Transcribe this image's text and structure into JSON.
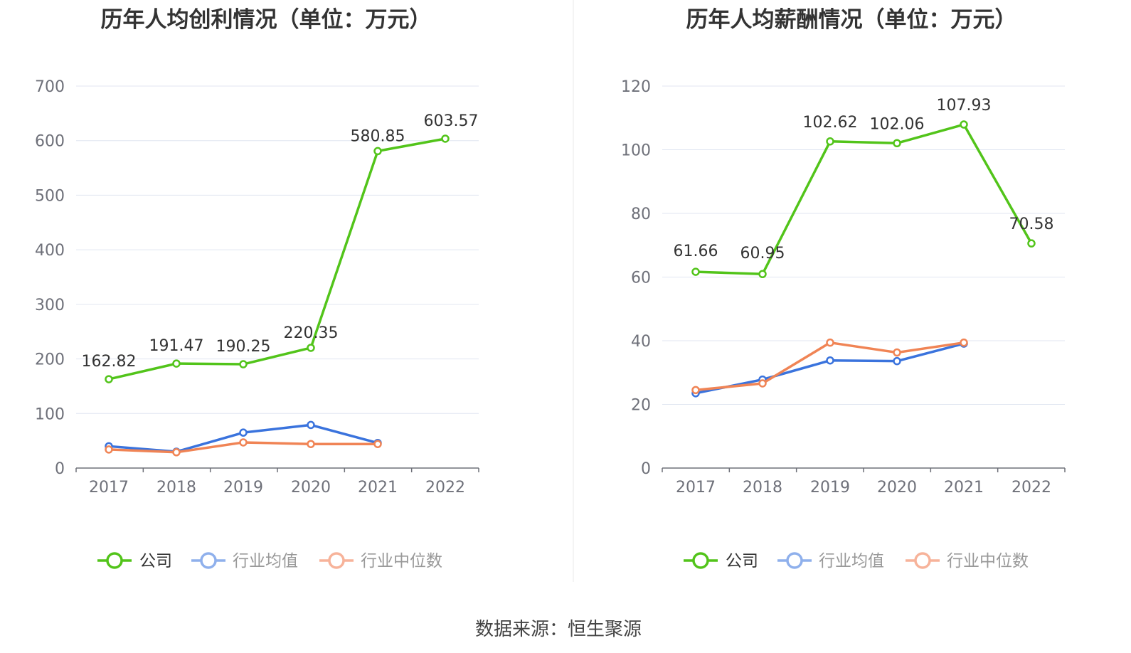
{
  "chart_data": [
    {
      "type": "line",
      "title": "历年人均创利情况（单位：万元）",
      "categories": [
        "2017",
        "2018",
        "2019",
        "2020",
        "2021",
        "2022"
      ],
      "ylim": [
        0,
        700
      ],
      "yticks": [
        0,
        100,
        200,
        300,
        400,
        500,
        600,
        700
      ],
      "grid": true,
      "legend_position": "bottom",
      "series": [
        {
          "name": "公司",
          "color": "#52c41a",
          "values": [
            162.82,
            191.47,
            190.25,
            220.35,
            580.85,
            603.57
          ],
          "labels": [
            "162.82",
            "191.47",
            "190.25",
            "220.35",
            "580.85",
            "603.57"
          ]
        },
        {
          "name": "行业均值",
          "color": "#3a73dd",
          "values": [
            40,
            30,
            65,
            79,
            46,
            null
          ]
        },
        {
          "name": "行业中位数",
          "color": "#f08455",
          "values": [
            34,
            29,
            47,
            44,
            44,
            null
          ]
        }
      ]
    },
    {
      "type": "line",
      "title": "历年人均薪酬情况（单位：万元）",
      "categories": [
        "2017",
        "2018",
        "2019",
        "2020",
        "2021",
        "2022"
      ],
      "ylim": [
        0,
        120
      ],
      "yticks": [
        0,
        20,
        40,
        60,
        80,
        100,
        120
      ],
      "grid": true,
      "legend_position": "bottom",
      "series": [
        {
          "name": "公司",
          "color": "#52c41a",
          "values": [
            61.66,
            60.95,
            102.62,
            102.06,
            107.93,
            70.58
          ],
          "labels": [
            "61.66",
            "60.95",
            "102.62",
            "102.06",
            "107.93",
            "70.58"
          ]
        },
        {
          "name": "行业均值",
          "color": "#3a73dd",
          "values": [
            23.5,
            27.8,
            33.8,
            33.6,
            39.1,
            null
          ]
        },
        {
          "name": "行业中位数",
          "color": "#f08455",
          "values": [
            24.5,
            26.6,
            39.4,
            36.3,
            39.4,
            null
          ]
        }
      ]
    }
  ],
  "legend_icon_colors": [
    "#52c41a",
    "#8fb0ec",
    "#f7b39a"
  ],
  "legend_text_colors": [
    "#333333",
    "#999999",
    "#999999"
  ],
  "source": "数据来源：恒生聚源"
}
